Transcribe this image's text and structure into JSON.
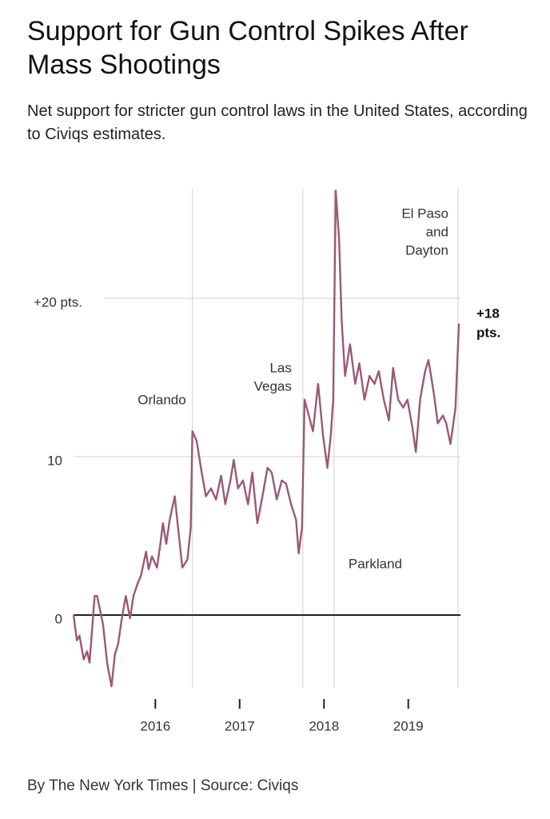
{
  "chart_data": {
    "type": "line",
    "title": "Support for Gun Control Spikes After Mass Shootings",
    "subtitle": "Net support for stricter gun control laws in the United States, according to Civiqs estimates.",
    "source": "By The New York Times | Source: Civiqs",
    "xlim": [
      2015.03,
      2019.6
    ],
    "xticks": [
      2016,
      2017,
      2018,
      2019
    ],
    "ylim": [
      -5,
      27
    ],
    "yticks": [
      0,
      10,
      {
        "value": 20,
        "label": "+20 pts."
      }
    ],
    "grid": true,
    "series": [
      {
        "color": "#9b5877",
        "x": [
          2015.03,
          2015.07,
          2015.1,
          2015.15,
          2015.19,
          2015.22,
          2015.28,
          2015.31,
          2015.38,
          2015.43,
          2015.48,
          2015.52,
          2015.56,
          2015.6,
          2015.65,
          2015.7,
          2015.74,
          2015.79,
          2015.83,
          2015.89,
          2015.92,
          2015.96,
          2016.02,
          2016.06,
          2016.09,
          2016.13,
          2016.17,
          2016.23,
          2016.26,
          2016.32,
          2016.38,
          2016.42,
          2016.44,
          2016.49,
          2016.55,
          2016.6,
          2016.66,
          2016.72,
          2016.78,
          2016.83,
          2016.89,
          2016.93,
          2016.98,
          2017.04,
          2017.1,
          2017.15,
          2017.21,
          2017.27,
          2017.33,
          2017.38,
          2017.44,
          2017.5,
          2017.55,
          2017.61,
          2017.67,
          2017.7,
          2017.74,
          2017.77,
          2017.82,
          2017.87,
          2017.93,
          2017.99,
          2018.04,
          2018.08,
          2018.11,
          2018.14,
          2018.18,
          2018.21,
          2018.25,
          2018.31,
          2018.37,
          2018.42,
          2018.48,
          2018.54,
          2018.6,
          2018.65,
          2018.71,
          2018.77,
          2018.82,
          2018.88,
          2018.94,
          2018.99,
          2019.05,
          2019.09,
          2019.14,
          2019.2,
          2019.24,
          2019.3,
          2019.35,
          2019.41,
          2019.45,
          2019.5,
          2019.56,
          2019.6
        ],
        "values": [
          0,
          -1.6,
          -1.3,
          -2.8,
          -2.3,
          -3.0,
          1.2,
          1.2,
          -0.6,
          -3.1,
          -4.5,
          -2.5,
          -1.8,
          -0.3,
          1.2,
          -0.2,
          1.2,
          2.0,
          2.5,
          4.0,
          2.9,
          3.7,
          3.0,
          4.5,
          5.8,
          4.5,
          6.0,
          7.5,
          6.0,
          3.0,
          3.5,
          5.5,
          11.6,
          11.0,
          9.0,
          7.5,
          8.0,
          7.3,
          8.8,
          7.0,
          8.5,
          9.8,
          8.0,
          8.5,
          7.0,
          9.0,
          5.8,
          7.5,
          9.3,
          9.0,
          7.3,
          8.5,
          8.3,
          7.0,
          6.0,
          3.9,
          5.5,
          13.6,
          12.6,
          11.6,
          14.6,
          11.3,
          9.3,
          11.3,
          13.6,
          26.8,
          23.7,
          18.6,
          15.1,
          17.1,
          14.6,
          15.9,
          13.6,
          15.1,
          14.6,
          15.4,
          13.6,
          12.3,
          15.6,
          13.6,
          13.1,
          13.6,
          11.8,
          10.3,
          13.6,
          15.4,
          16.1,
          14.1,
          12.1,
          12.6,
          12.1,
          10.8,
          13.1,
          18.4
        ]
      }
    ],
    "end_label": [
      "+18",
      "pts."
    ],
    "annotations": [
      {
        "x": 2016.44,
        "label": [
          "Orlando"
        ]
      },
      {
        "x": 2017.75,
        "label": [
          "Las",
          "Vegas"
        ]
      },
      {
        "x": 2018.12,
        "label": [
          "Parkland"
        ]
      },
      {
        "x": 2019.59,
        "label": [
          "El Paso",
          "and",
          "Dayton"
        ]
      }
    ]
  }
}
